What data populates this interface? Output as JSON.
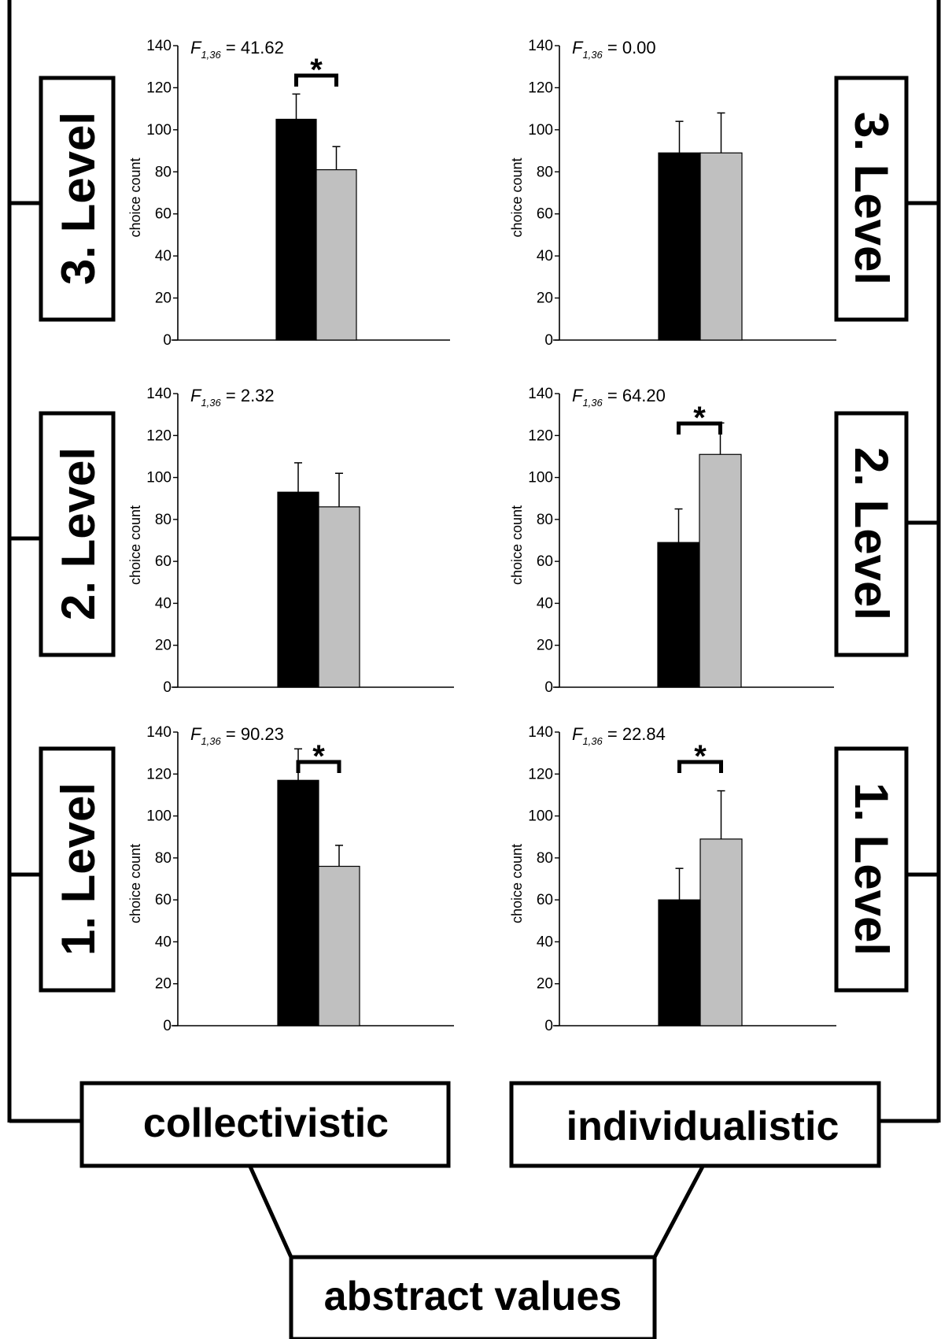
{
  "labels": {
    "level3": "3. Level",
    "level2": "2. Level",
    "level1": "1. Level",
    "collectivistic": "collectivistic",
    "individualistic": "individualistic",
    "root": "abstract values",
    "ylabel": "choice count",
    "stat_prefix": "F",
    "stat_sub": "1,36",
    "star": "*"
  },
  "colors": {
    "bar_a": "#000000",
    "bar_b": "#c0c0c0",
    "lines": "#000000"
  },
  "chart_data": [
    {
      "type": "bar",
      "group": "collectivistic",
      "level": 3,
      "ylabel": "choice count",
      "ylim": [
        0,
        140
      ],
      "yticks": [
        0,
        20,
        40,
        60,
        80,
        100,
        120,
        140
      ],
      "series": [
        {
          "values": [
            105
          ],
          "error": [
            12
          ]
        },
        {
          "values": [
            81
          ],
          "error": [
            11
          ]
        }
      ],
      "stat": "= 41.62",
      "significant": true
    },
    {
      "type": "bar",
      "group": "individualistic",
      "level": 3,
      "ylabel": "choice count",
      "ylim": [
        0,
        140
      ],
      "yticks": [
        0,
        20,
        40,
        60,
        80,
        100,
        120,
        140
      ],
      "series": [
        {
          "values": [
            89
          ],
          "error": [
            15
          ]
        },
        {
          "values": [
            89
          ],
          "error": [
            19
          ]
        }
      ],
      "stat": "= 0.00",
      "significant": false
    },
    {
      "type": "bar",
      "group": "collectivistic",
      "level": 2,
      "ylabel": "choice count",
      "ylim": [
        0,
        140
      ],
      "yticks": [
        0,
        20,
        40,
        60,
        80,
        100,
        120,
        140
      ],
      "series": [
        {
          "values": [
            93
          ],
          "error": [
            14
          ]
        },
        {
          "values": [
            86
          ],
          "error": [
            16
          ]
        }
      ],
      "stat": "= 2.32",
      "significant": false
    },
    {
      "type": "bar",
      "group": "individualistic",
      "level": 2,
      "ylabel": "choice count",
      "ylim": [
        0,
        140
      ],
      "yticks": [
        0,
        20,
        40,
        60,
        80,
        100,
        120,
        140
      ],
      "series": [
        {
          "values": [
            69
          ],
          "error": [
            16
          ]
        },
        {
          "values": [
            111
          ],
          "error": [
            15
          ]
        }
      ],
      "stat": "= 64.20",
      "significant": true
    },
    {
      "type": "bar",
      "group": "collectivistic",
      "level": 1,
      "ylabel": "choice count",
      "ylim": [
        0,
        140
      ],
      "yticks": [
        0,
        20,
        40,
        60,
        80,
        100,
        120,
        140
      ],
      "series": [
        {
          "values": [
            117
          ],
          "error": [
            15
          ]
        },
        {
          "values": [
            76
          ],
          "error": [
            10
          ]
        }
      ],
      "stat": "= 90.23",
      "significant": true
    },
    {
      "type": "bar",
      "group": "individualistic",
      "level": 1,
      "ylabel": "choice count",
      "ylim": [
        0,
        140
      ],
      "yticks": [
        0,
        20,
        40,
        60,
        80,
        100,
        120,
        140
      ],
      "series": [
        {
          "values": [
            60
          ],
          "error": [
            15
          ]
        },
        {
          "values": [
            89
          ],
          "error": [
            23
          ]
        }
      ],
      "stat": "= 22.84",
      "significant": true
    }
  ]
}
